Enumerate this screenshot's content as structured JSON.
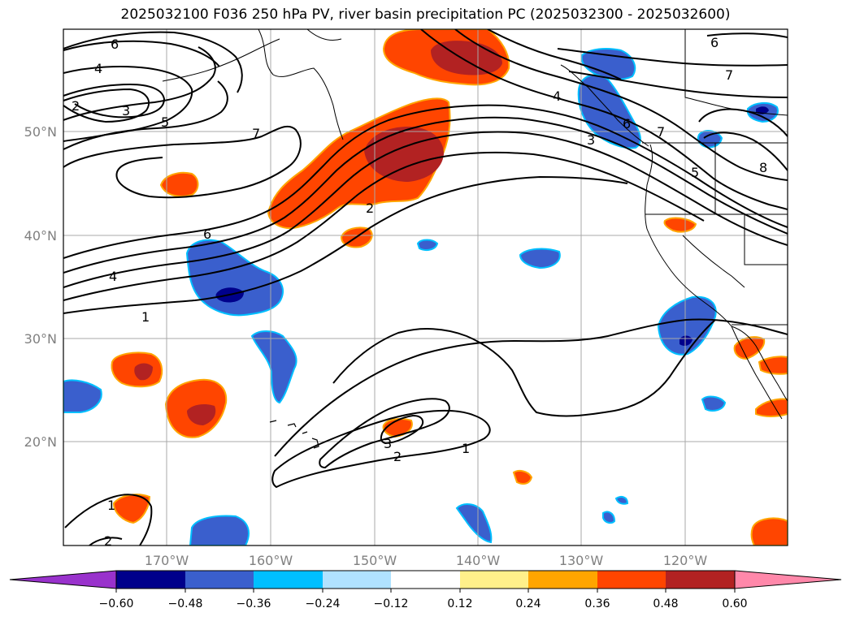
{
  "title": "2025032100 F036 250 hPa PV, river basin precipitation PC (2025032300 - 2025032600)",
  "map": {
    "lat_labels": [
      "50°N",
      "40°N",
      "30°N",
      "20°N"
    ],
    "lon_labels": [
      "170°W",
      "160°W",
      "150°W",
      "140°W",
      "130°W",
      "120°W"
    ],
    "contour_labels": [
      "6",
      "4",
      "2",
      "3",
      "5",
      "7",
      "6",
      "4",
      "1",
      "2",
      "3",
      "2",
      "1",
      "1",
      "2",
      "4",
      "6",
      "3",
      "7",
      "5",
      "8",
      "6",
      "7"
    ],
    "colors": {
      "positive_high": "#b22222",
      "positive_mid": "#ff4500",
      "positive_low": "#ffa500",
      "positive_edge": "#fff08a",
      "negative_mid": "#3a5fcd",
      "negative_high": "#00008b",
      "negative_low": "#00bfff",
      "negative_edge": "#b0e2ff"
    }
  },
  "colorbar": {
    "ticks": [
      "−0.60",
      "−0.48",
      "−0.36",
      "−0.24",
      "−0.12",
      "0.12",
      "0.24",
      "0.36",
      "0.48",
      "0.60"
    ],
    "colors": [
      "#9932cc",
      "#00008b",
      "#3a5fcd",
      "#00bfff",
      "#b0e2ff",
      "#ffffff",
      "#fff08a",
      "#ffa500",
      "#ff4500",
      "#b22222",
      "#ff88aa"
    ]
  }
}
